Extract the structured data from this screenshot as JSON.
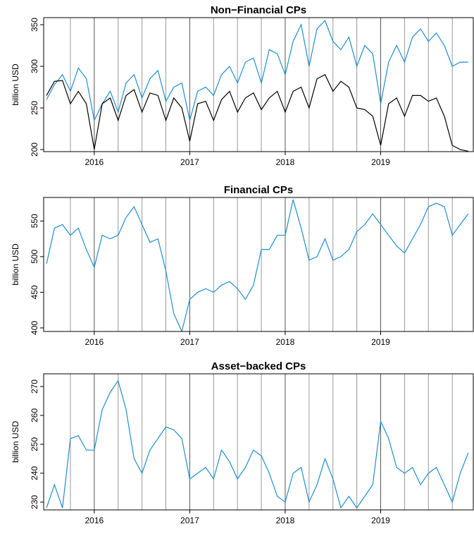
{
  "chart_data": [
    {
      "type": "line",
      "title": "Non−Financial CPs",
      "y_label": "billion USD",
      "x": [
        2015.5,
        2015.583,
        2015.667,
        2015.75,
        2015.833,
        2015.917,
        2016,
        2016.083,
        2016.167,
        2016.25,
        2016.333,
        2016.417,
        2016.5,
        2016.583,
        2016.667,
        2016.75,
        2016.833,
        2016.917,
        2017,
        2017.083,
        2017.167,
        2017.25,
        2017.333,
        2017.417,
        2017.5,
        2017.583,
        2017.667,
        2017.75,
        2017.833,
        2017.917,
        2018,
        2018.083,
        2018.167,
        2018.25,
        2018.333,
        2018.417,
        2018.5,
        2018.583,
        2018.667,
        2018.75,
        2018.833,
        2018.917,
        2019,
        2019.083,
        2019.167,
        2019.25,
        2019.333,
        2019.417,
        2019.5,
        2019.583,
        2019.667,
        2019.75,
        2019.833,
        2019.917
      ],
      "series": [
        {
          "color": "#1f8fd0",
          "values": [
            260,
            278,
            290,
            270,
            298,
            285,
            235,
            255,
            270,
            245,
            280,
            290,
            262,
            285,
            295,
            258,
            275,
            280,
            235,
            270,
            275,
            265,
            290,
            300,
            280,
            305,
            310,
            280,
            320,
            315,
            290,
            330,
            350,
            300,
            345,
            355,
            330,
            320,
            335,
            300,
            325,
            315,
            255,
            305,
            325,
            305,
            335,
            345,
            330,
            340,
            325,
            300,
            305,
            305
          ]
        },
        {
          "color": "#000000",
          "values": [
            265,
            282,
            283,
            255,
            270,
            255,
            200,
            255,
            262,
            235,
            265,
            272,
            245,
            268,
            265,
            235,
            262,
            250,
            210,
            255,
            258,
            235,
            260,
            270,
            245,
            262,
            268,
            248,
            262,
            270,
            245,
            270,
            275,
            250,
            285,
            290,
            270,
            282,
            275,
            250,
            248,
            240,
            205,
            255,
            262,
            240,
            265,
            265,
            258,
            262,
            240,
            205,
            200,
            198
          ]
        }
      ],
      "xlim": [
        2015.47,
        2019.97
      ],
      "xticks": [
        2016,
        2017,
        2018,
        2019
      ],
      "ylim": [
        197.5,
        358.5
      ],
      "yticks": [
        200,
        250,
        300,
        350
      ],
      "vlines": [
        2015.75,
        2016,
        2016.25,
        2016.5,
        2016.75,
        2017,
        2017.25,
        2017.5,
        2017.75,
        2018,
        2018.25,
        2018.5,
        2018.75,
        2019,
        2019.25,
        2019.5,
        2019.75
      ]
    },
    {
      "type": "line",
      "title": "Financial CPs",
      "y_label": "billion USD",
      "x": [
        2015.5,
        2015.583,
        2015.667,
        2015.75,
        2015.833,
        2015.917,
        2016,
        2016.083,
        2016.167,
        2016.25,
        2016.333,
        2016.417,
        2016.5,
        2016.583,
        2016.667,
        2016.75,
        2016.833,
        2016.917,
        2017,
        2017.083,
        2017.167,
        2017.25,
        2017.333,
        2017.417,
        2017.5,
        2017.583,
        2017.667,
        2017.75,
        2017.833,
        2017.917,
        2018,
        2018.083,
        2018.167,
        2018.25,
        2018.333,
        2018.417,
        2018.5,
        2018.583,
        2018.667,
        2018.75,
        2018.833,
        2018.917,
        2019,
        2019.083,
        2019.167,
        2019.25,
        2019.333,
        2019.417,
        2019.5,
        2019.583,
        2019.667,
        2019.75,
        2019.833,
        2019.917
      ],
      "series": [
        {
          "color": "#1f8fd0",
          "values": [
            490,
            540,
            545,
            530,
            540,
            510,
            485,
            530,
            525,
            530,
            555,
            570,
            545,
            520,
            525,
            480,
            420,
            395,
            440,
            450,
            455,
            450,
            460,
            465,
            455,
            440,
            460,
            510,
            510,
            530,
            530,
            580,
            540,
            495,
            500,
            525,
            495,
            500,
            510,
            535,
            545,
            560,
            545,
            530,
            515,
            505,
            525,
            545,
            570,
            575,
            570,
            530,
            545,
            560
          ]
        }
      ],
      "xlim": [
        2015.47,
        2019.97
      ],
      "xticks": [
        2016,
        2017,
        2018,
        2019
      ],
      "ylim": [
        395,
        583
      ],
      "yticks": [
        400,
        450,
        500,
        550
      ],
      "vlines": [
        2015.75,
        2016,
        2016.25,
        2016.5,
        2016.75,
        2017,
        2017.25,
        2017.5,
        2017.75,
        2018,
        2018.25,
        2018.5,
        2018.75,
        2019,
        2019.25,
        2019.5,
        2019.75
      ]
    },
    {
      "type": "line",
      "title": "Asset−backed CPs",
      "y_label": "billion USD",
      "x": [
        2015.5,
        2015.583,
        2015.667,
        2015.75,
        2015.833,
        2015.917,
        2016,
        2016.083,
        2016.167,
        2016.25,
        2016.333,
        2016.417,
        2016.5,
        2016.583,
        2016.667,
        2016.75,
        2016.833,
        2016.917,
        2017,
        2017.083,
        2017.167,
        2017.25,
        2017.333,
        2017.417,
        2017.5,
        2017.583,
        2017.667,
        2017.75,
        2017.833,
        2017.917,
        2018,
        2018.083,
        2018.167,
        2018.25,
        2018.333,
        2018.417,
        2018.5,
        2018.583,
        2018.667,
        2018.75,
        2018.833,
        2018.917,
        2019,
        2019.083,
        2019.167,
        2019.25,
        2019.333,
        2019.417,
        2019.5,
        2019.583,
        2019.667,
        2019.75,
        2019.833,
        2019.917
      ],
      "series": [
        {
          "color": "#1f8fd0",
          "values": [
            228,
            236,
            228,
            252,
            253,
            248,
            248,
            262,
            268,
            272,
            262,
            245,
            240,
            248,
            252,
            256,
            255,
            252,
            238,
            240,
            242,
            238,
            248,
            244,
            238,
            242,
            248,
            246,
            240,
            232,
            230,
            240,
            242,
            230,
            236,
            245,
            238,
            228,
            232,
            228,
            232,
            236,
            258,
            252,
            242,
            240,
            242,
            236,
            240,
            242,
            236,
            230,
            240,
            247
          ]
        }
      ],
      "xlim": [
        2015.47,
        2019.97
      ],
      "xticks": [
        2016,
        2017,
        2018,
        2019
      ],
      "ylim": [
        227.3,
        274.4
      ],
      "yticks": [
        230,
        240,
        250,
        260,
        270
      ],
      "vlines": [
        2015.75,
        2016,
        2016.25,
        2016.5,
        2016.75,
        2017,
        2017.25,
        2017.5,
        2017.75,
        2018,
        2018.25,
        2018.5,
        2018.75,
        2019,
        2019.25,
        2019.5,
        2019.75
      ]
    }
  ]
}
